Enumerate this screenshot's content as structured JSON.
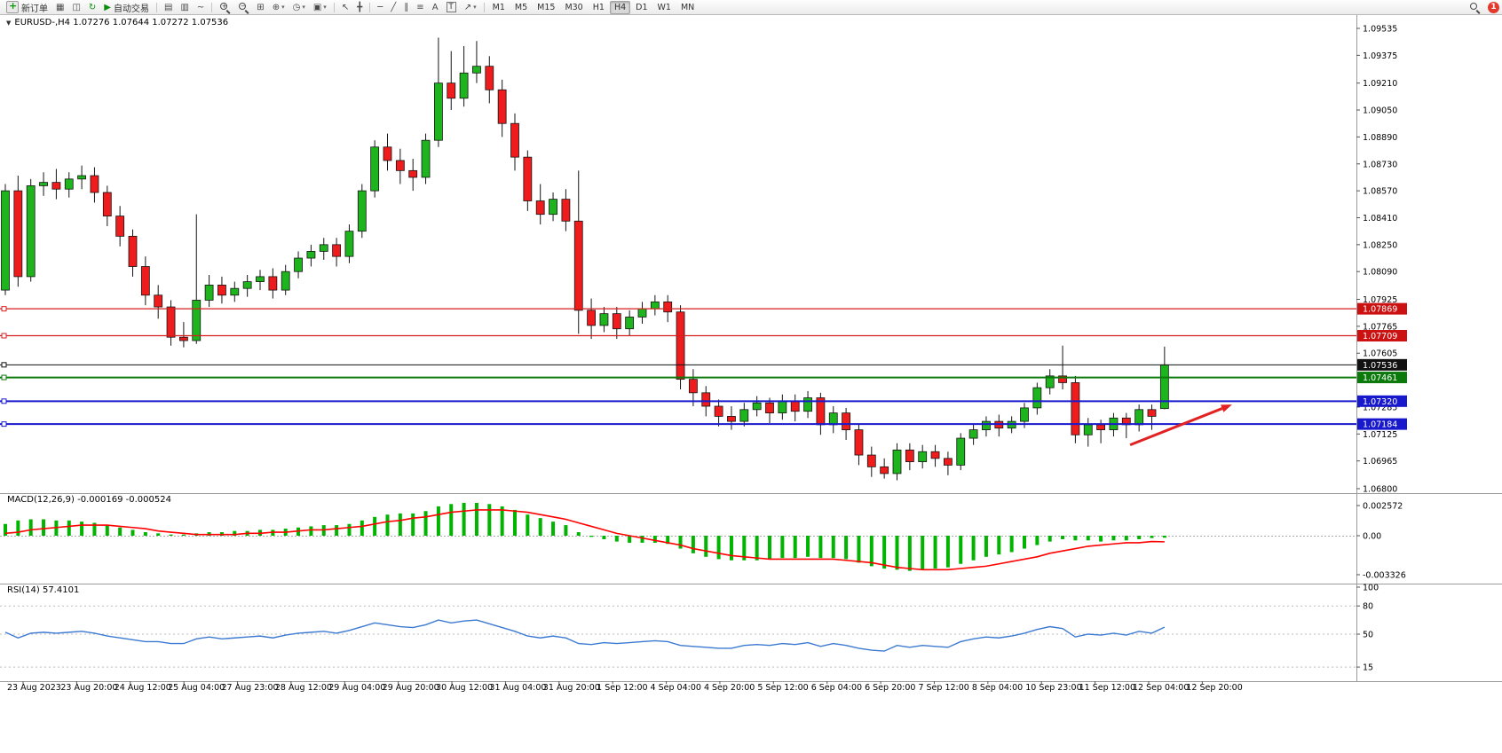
{
  "toolbar": {
    "new_order_label": "新订单",
    "autotrade_label": "自动交易",
    "text_tool_label": "A",
    "label_tool_label": "T",
    "timeframes": [
      "M1",
      "M5",
      "M15",
      "M30",
      "H1",
      "H4",
      "D1",
      "W1",
      "MN"
    ],
    "active_timeframe": "H4",
    "notification_badge": "1",
    "icon_glyphs": {
      "new_order_plus": "+",
      "market_watch": "▦",
      "data_window": "◫",
      "refresh": "↻",
      "autotrade_play": "▶",
      "bars_chart": "▤",
      "candle_chart": "▥",
      "line_chart": "~",
      "zoom_plus": "+",
      "zoom_minus": "−",
      "tile_windows": "⊞",
      "indicators": "⊕",
      "periods": "◷",
      "templates": "▣",
      "cursor": "↖",
      "crosshair": "╋",
      "hline": "─",
      "tline": "╱",
      "channel": "∥",
      "fibonacci": "≡",
      "arrows": "↗",
      "dropdown": "▾"
    }
  },
  "chart": {
    "marker": "▼",
    "title": "EURUSD-,H4 1.07276 1.07644 1.07272 1.07536"
  },
  "price_axis": {
    "ticks": [
      "1.09535",
      "1.09375",
      "1.09210",
      "1.09050",
      "1.08890",
      "1.08730",
      "1.08570",
      "1.08410",
      "1.08250",
      "1.08090",
      "1.07925",
      "1.07765",
      "1.07605",
      "1.07285",
      "1.07125",
      "1.06965",
      "1.06800"
    ],
    "tags": [
      {
        "label": "1.07869",
        "color": "#cc1111"
      },
      {
        "label": "1.07709",
        "color": "#cc1111"
      },
      {
        "label": "1.07536",
        "color": "#111111"
      },
      {
        "label": "1.07461",
        "color": "#0b7a0b"
      },
      {
        "label": "1.07320",
        "color": "#1818cc"
      },
      {
        "label": "1.07184",
        "color": "#1818cc"
      }
    ]
  },
  "time_axis": {
    "labels": [
      "23 Aug 2023",
      "23 Aug 20:00",
      "24 Aug 12:00",
      "25 Aug 04:00",
      "27 Aug 23:00",
      "28 Aug 12:00",
      "29 Aug 04:00",
      "29 Aug 20:00",
      "30 Aug 12:00",
      "31 Aug 04:00",
      "31 Aug 20:00",
      "1 Sep 12:00",
      "4 Sep 04:00",
      "4 Sep 20:00",
      "5 Sep 12:00",
      "6 Sep 04:00",
      "6 Sep 20:00",
      "7 Sep 12:00",
      "8 Sep 04:00",
      "10 Sep 23:00",
      "11 Sep 12:00",
      "12 Sep 04:00",
      "12 Sep 20:00"
    ]
  },
  "macd_panel": {
    "label": "MACD(12,26,9) -0.000169 -0.000524",
    "ticks": [
      "0.002572",
      "0.00",
      "-0.003326"
    ]
  },
  "rsi_panel": {
    "label": "RSI(14) 57.4101",
    "ticks": [
      "100",
      "80",
      "50",
      "15"
    ]
  },
  "chart_data": [
    {
      "type": "candlestick",
      "symbol": "EURUSD-",
      "period": "H4",
      "ylim": [
        1.068,
        1.09535
      ],
      "up_color": "#1db41d",
      "down_color": "#ee1c1c",
      "outline_color": "#151515",
      "ohlc": [
        [
          1.0798,
          1.0861,
          1.0795,
          1.0857
        ],
        [
          1.0857,
          1.0866,
          1.08,
          1.0806
        ],
        [
          1.0806,
          1.0864,
          1.0803,
          1.086
        ],
        [
          1.086,
          1.0868,
          1.0854,
          1.0862
        ],
        [
          1.0862,
          1.087,
          1.0852,
          1.0858
        ],
        [
          1.0858,
          1.0868,
          1.0853,
          1.0864
        ],
        [
          1.0864,
          1.0872,
          1.0858,
          1.0866
        ],
        [
          1.0866,
          1.0871,
          1.085,
          1.0856
        ],
        [
          1.0856,
          1.086,
          1.0836,
          1.0842
        ],
        [
          1.0842,
          1.0848,
          1.0824,
          1.083
        ],
        [
          1.083,
          1.0834,
          1.0806,
          1.0812
        ],
        [
          1.0812,
          1.0818,
          1.0789,
          1.0795
        ],
        [
          1.0795,
          1.0801,
          1.0781,
          1.0788
        ],
        [
          1.0788,
          1.0792,
          1.0765,
          1.077
        ],
        [
          1.077,
          1.0779,
          1.0764,
          1.0768
        ],
        [
          1.0768,
          1.0843,
          1.0766,
          1.0792
        ],
        [
          1.0792,
          1.0807,
          1.0788,
          1.0801
        ],
        [
          1.0801,
          1.0806,
          1.079,
          1.0795
        ],
        [
          1.0795,
          1.0803,
          1.0791,
          1.0799
        ],
        [
          1.0799,
          1.0807,
          1.0794,
          1.0803
        ],
        [
          1.0803,
          1.081,
          1.0798,
          1.0806
        ],
        [
          1.0806,
          1.0811,
          1.0793,
          1.0798
        ],
        [
          1.0798,
          1.0813,
          1.0795,
          1.0809
        ],
        [
          1.0809,
          1.0821,
          1.0805,
          1.0817
        ],
        [
          1.0817,
          1.0825,
          1.0812,
          1.0821
        ],
        [
          1.0821,
          1.0829,
          1.0816,
          1.0825
        ],
        [
          1.0825,
          1.0829,
          1.0812,
          1.0818
        ],
        [
          1.0818,
          1.0837,
          1.0814,
          1.0833
        ],
        [
          1.0833,
          1.0861,
          1.0829,
          1.0857
        ],
        [
          1.0857,
          1.0887,
          1.0853,
          1.0883
        ],
        [
          1.0883,
          1.0891,
          1.0869,
          1.0875
        ],
        [
          1.0875,
          1.0882,
          1.0861,
          1.0869
        ],
        [
          1.0869,
          1.0876,
          1.0857,
          1.0865
        ],
        [
          1.0865,
          1.0891,
          1.0861,
          1.0887
        ],
        [
          1.0887,
          1.0948,
          1.0883,
          1.0921
        ],
        [
          1.0921,
          1.094,
          1.0905,
          1.0912
        ],
        [
          1.0912,
          1.0943,
          1.0907,
          1.0927
        ],
        [
          1.0927,
          1.0946,
          1.0921,
          1.0931
        ],
        [
          1.0931,
          1.0937,
          1.0909,
          1.0917
        ],
        [
          1.0917,
          1.0923,
          1.0889,
          1.0897
        ],
        [
          1.0897,
          1.0903,
          1.0869,
          1.0877
        ],
        [
          1.0877,
          1.0881,
          1.0845,
          1.0851
        ],
        [
          1.0851,
          1.0861,
          1.0837,
          1.0843
        ],
        [
          1.0843,
          1.0856,
          1.0839,
          1.0852
        ],
        [
          1.0852,
          1.0858,
          1.0833,
          1.0839
        ],
        [
          1.0839,
          1.0869,
          1.0772,
          1.0786
        ],
        [
          1.0786,
          1.0793,
          1.0769,
          1.0777
        ],
        [
          1.0777,
          1.0788,
          1.0773,
          1.0784
        ],
        [
          1.0784,
          1.0788,
          1.0769,
          1.0775
        ],
        [
          1.0775,
          1.0786,
          1.0771,
          1.0782
        ],
        [
          1.0782,
          1.0791,
          1.0778,
          1.0787
        ],
        [
          1.0787,
          1.0795,
          1.0783,
          1.0791
        ],
        [
          1.0791,
          1.0795,
          1.0779,
          1.0785
        ],
        [
          1.0785,
          1.0789,
          1.0739,
          1.0745
        ],
        [
          1.0745,
          1.0751,
          1.0729,
          1.0737
        ],
        [
          1.0737,
          1.0741,
          1.0723,
          1.0729
        ],
        [
          1.0729,
          1.0733,
          1.0717,
          1.0723
        ],
        [
          1.0723,
          1.0729,
          1.0715,
          1.072
        ],
        [
          1.072,
          1.0731,
          1.0717,
          1.0727
        ],
        [
          1.0727,
          1.0735,
          1.0723,
          1.0731
        ],
        [
          1.0731,
          1.0734,
          1.0719,
          1.0725
        ],
        [
          1.0725,
          1.0736,
          1.0721,
          1.0732
        ],
        [
          1.0732,
          1.0736,
          1.072,
          1.0726
        ],
        [
          1.0726,
          1.0738,
          1.0722,
          1.0734
        ],
        [
          1.0734,
          1.0737,
          1.0712,
          1.0718
        ],
        [
          1.0718,
          1.0729,
          1.0713,
          1.0725
        ],
        [
          1.0725,
          1.0728,
          1.0709,
          1.0715
        ],
        [
          1.0715,
          1.0718,
          1.0694,
          1.07
        ],
        [
          1.07,
          1.0705,
          1.0687,
          1.0693
        ],
        [
          1.0693,
          1.0698,
          1.0686,
          1.0689
        ],
        [
          1.0689,
          1.0707,
          1.0685,
          1.0703
        ],
        [
          1.0703,
          1.0707,
          1.0691,
          1.0696
        ],
        [
          1.0696,
          1.0706,
          1.0692,
          1.0702
        ],
        [
          1.0702,
          1.0706,
          1.0693,
          1.0698
        ],
        [
          1.0698,
          1.0702,
          1.0688,
          1.0694
        ],
        [
          1.0694,
          1.0713,
          1.0691,
          1.071
        ],
        [
          1.071,
          1.0718,
          1.0706,
          1.0715
        ],
        [
          1.0715,
          1.0723,
          1.0711,
          1.072
        ],
        [
          1.072,
          1.0724,
          1.0711,
          1.0716
        ],
        [
          1.0716,
          1.0723,
          1.0713,
          1.072
        ],
        [
          1.072,
          1.0731,
          1.0716,
          1.0728
        ],
        [
          1.0728,
          1.0743,
          1.0724,
          1.074
        ],
        [
          1.074,
          1.0751,
          1.0736,
          1.0747
        ],
        [
          1.0747,
          1.0765,
          1.0739,
          1.0743
        ],
        [
          1.0743,
          1.0747,
          1.0707,
          1.0712
        ],
        [
          1.0712,
          1.0722,
          1.0705,
          1.0718
        ],
        [
          1.0718,
          1.0721,
          1.0707,
          1.0715
        ],
        [
          1.0715,
          1.0725,
          1.0711,
          1.0722
        ],
        [
          1.0722,
          1.0725,
          1.071,
          1.0718
        ],
        [
          1.0718,
          1.073,
          1.0714,
          1.0727
        ],
        [
          1.0727,
          1.073,
          1.0715,
          1.0723
        ],
        [
          1.07276,
          1.07644,
          1.07272,
          1.07536
        ]
      ],
      "lines": [
        {
          "price": 1.07869,
          "color": "#d51f1f",
          "width": 1.2,
          "name": "resistance-upper"
        },
        {
          "price": 1.07709,
          "color": "#d51f1f",
          "width": 1.2,
          "name": "resistance-lower"
        },
        {
          "price": 1.07536,
          "color": "#111111",
          "width": 1,
          "name": "current-price"
        },
        {
          "price": 1.07461,
          "color": "#0b7a0b",
          "width": 2,
          "name": "pivot-green"
        },
        {
          "price": 1.0732,
          "color": "#1818cc",
          "width": 2,
          "name": "support-upper"
        },
        {
          "price": 1.07184,
          "color": "#1818cc",
          "width": 2,
          "name": "support-lower"
        }
      ],
      "arrow": {
        "from_index": 88.3,
        "from_price": 1.0706,
        "to_index": 96.3,
        "to_price": 1.073,
        "color": "#e22222"
      }
    },
    {
      "type": "bar",
      "name": "MACD histogram",
      "macd_value": "-0.000169",
      "color": "#00b400",
      "values": [
        0.001,
        0.0013,
        0.0014,
        0.0014,
        0.0013,
        0.0013,
        0.0012,
        0.0011,
        0.0009,
        0.0007,
        0.0005,
        0.0003,
        0.0002,
        0.0001,
        0.0001,
        0.0002,
        0.0003,
        0.0003,
        0.0004,
        0.0004,
        0.0005,
        0.0005,
        0.0006,
        0.0007,
        0.0008,
        0.0009,
        0.0009,
        0.001,
        0.0013,
        0.0016,
        0.0018,
        0.0019,
        0.0019,
        0.0021,
        0.0025,
        0.0027,
        0.0028,
        0.0028,
        0.0027,
        0.0025,
        0.0022,
        0.0018,
        0.0015,
        0.0012,
        0.0009,
        0.0003,
        -0.0001,
        -0.0003,
        -0.0005,
        -0.0006,
        -0.0006,
        -0.0006,
        -0.0007,
        -0.0011,
        -0.0015,
        -0.0018,
        -0.002,
        -0.0021,
        -0.0021,
        -0.0021,
        -0.002,
        -0.0019,
        -0.0019,
        -0.0018,
        -0.0019,
        -0.0019,
        -0.002,
        -0.0023,
        -0.0026,
        -0.0028,
        -0.0029,
        -0.003,
        -0.0029,
        -0.0028,
        -0.0027,
        -0.0024,
        -0.0021,
        -0.0018,
        -0.0016,
        -0.0014,
        -0.0011,
        -0.0008,
        -0.0005,
        -0.0003,
        -0.0004,
        -0.0004,
        -0.0005,
        -0.0004,
        -0.0004,
        -0.0003,
        -0.0002,
        -0.00017
      ]
    },
    {
      "type": "line",
      "name": "MACD signal",
      "signal_value": "-0.000524",
      "color": "#ff0000",
      "ylim": [
        -0.003326,
        0.002572
      ],
      "values": [
        0.0002,
        0.0003,
        0.0005,
        0.0006,
        0.0007,
        0.0008,
        0.0009,
        0.0009,
        0.0009,
        0.0008,
        0.0007,
        0.0006,
        0.0004,
        0.0003,
        0.0002,
        0.0001,
        0.0001,
        0.0001,
        0.0001,
        0.0002,
        0.0002,
        0.0003,
        0.0003,
        0.0004,
        0.0005,
        0.0005,
        0.0006,
        0.0007,
        0.0008,
        0.001,
        0.0012,
        0.0013,
        0.0015,
        0.0016,
        0.0018,
        0.002,
        0.0021,
        0.0022,
        0.0022,
        0.0022,
        0.0021,
        0.002,
        0.0018,
        0.0016,
        0.0014,
        0.0011,
        0.0008,
        0.0005,
        0.0002,
        0.0,
        -0.0002,
        -0.0004,
        -0.0006,
        -0.0008,
        -0.0011,
        -0.0013,
        -0.0015,
        -0.0017,
        -0.0018,
        -0.0019,
        -0.002,
        -0.002,
        -0.002,
        -0.002,
        -0.002,
        -0.002,
        -0.0021,
        -0.0022,
        -0.0023,
        -0.0025,
        -0.0027,
        -0.0028,
        -0.0029,
        -0.0029,
        -0.0029,
        -0.0028,
        -0.0027,
        -0.0026,
        -0.0024,
        -0.0022,
        -0.002,
        -0.0018,
        -0.0015,
        -0.0013,
        -0.0011,
        -0.0009,
        -0.0008,
        -0.0007,
        -0.0006,
        -0.0006,
        -0.0005,
        -0.00052
      ]
    },
    {
      "type": "line",
      "name": "RSI(14)",
      "value": "57.4101",
      "color": "#3c7ad2",
      "ylim": [
        0,
        100
      ],
      "levels": [
        80,
        50,
        15
      ],
      "values": [
        52,
        46,
        51,
        52,
        51,
        52,
        53,
        51,
        48,
        46,
        44,
        42,
        42,
        40,
        40,
        45,
        47,
        45,
        46,
        47,
        48,
        46,
        49,
        51,
        52,
        53,
        51,
        54,
        58,
        62,
        60,
        58,
        57,
        60,
        65,
        62,
        64,
        65,
        61,
        57,
        53,
        48,
        46,
        48,
        46,
        40,
        39,
        41,
        40,
        41,
        42,
        43,
        42,
        38,
        37,
        36,
        35,
        35,
        38,
        39,
        38,
        40,
        39,
        41,
        37,
        40,
        38,
        35,
        33,
        32,
        38,
        36,
        38,
        37,
        36,
        42,
        45,
        47,
        46,
        48,
        51,
        55,
        58,
        56,
        47,
        50,
        49,
        51,
        49,
        53,
        51,
        57.41
      ]
    }
  ]
}
